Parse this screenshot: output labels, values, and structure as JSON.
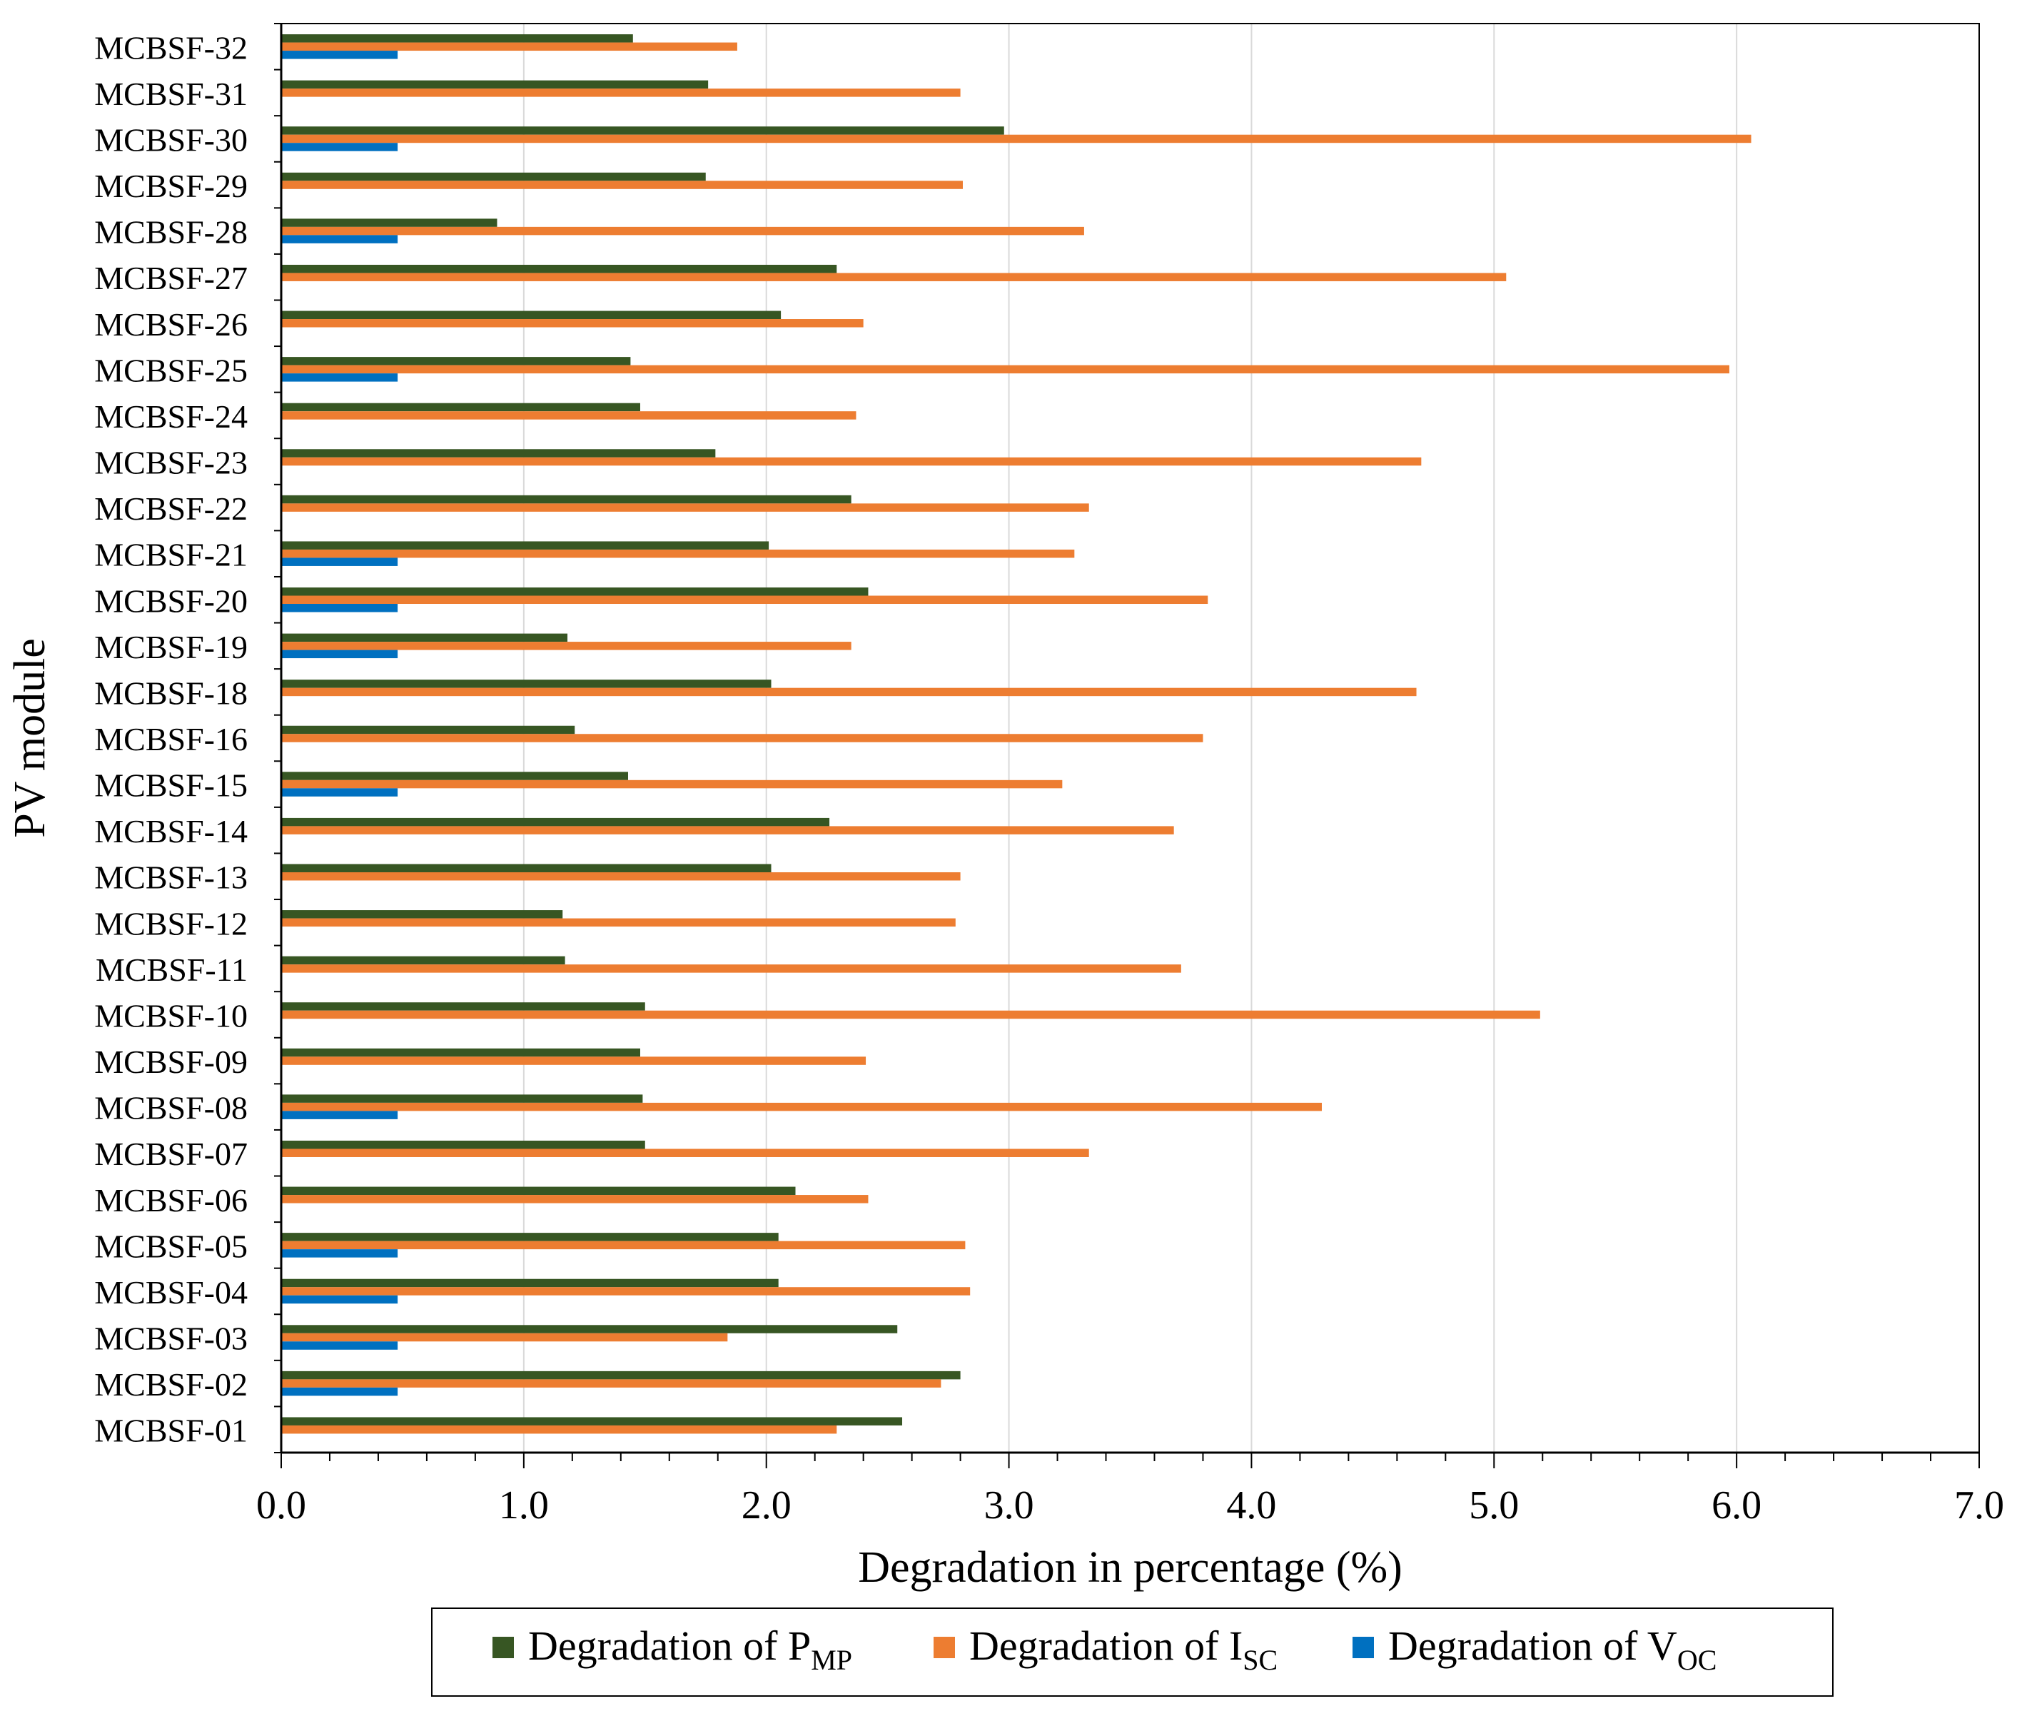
{
  "chart_data": {
    "type": "bar",
    "orientation": "horizontal",
    "title": "",
    "xlabel": "Degradation in percentage (%)",
    "ylabel": "PV module",
    "xlim": [
      0,
      7.0
    ],
    "x_ticks": [
      "0.0",
      "1.0",
      "2.0",
      "3.0",
      "4.0",
      "5.0",
      "6.0",
      "7.0"
    ],
    "x_tick_values": [
      0,
      1,
      2,
      3,
      4,
      5,
      6,
      7
    ],
    "grid": "vertical",
    "legend_position": "bottom",
    "categories": [
      "MCBSF-01",
      "MCBSF-02",
      "MCBSF-03",
      "MCBSF-04",
      "MCBSF-05",
      "MCBSF-06",
      "MCBSF-07",
      "MCBSF-08",
      "MCBSF-09",
      "MCBSF-10",
      "MCBSF-11",
      "MCBSF-12",
      "MCBSF-13",
      "MCBSF-14",
      "MCBSF-15",
      "MCBSF-16",
      "MCBSF-18",
      "MCBSF-19",
      "MCBSF-20",
      "MCBSF-21",
      "MCBSF-22",
      "MCBSF-23",
      "MCBSF-24",
      "MCBSF-25",
      "MCBSF-26",
      "MCBSF-27",
      "MCBSF-28",
      "MCBSF-29",
      "MCBSF-30",
      "MCBSF-31",
      "MCBSF-32"
    ],
    "series": [
      {
        "name": "Degradation of PMP",
        "legend_main": "Degradation of P",
        "legend_sub": "MP",
        "color": "#375623",
        "values": [
          2.56,
          2.8,
          2.54,
          2.05,
          2.05,
          2.12,
          1.5,
          1.49,
          1.48,
          1.5,
          1.17,
          1.16,
          2.02,
          2.26,
          1.43,
          1.21,
          2.02,
          1.18,
          2.42,
          2.01,
          2.35,
          1.79,
          1.48,
          1.44,
          2.06,
          2.29,
          0.89,
          1.75,
          2.98,
          1.76,
          1.45
        ]
      },
      {
        "name": "Degradation of ISC",
        "legend_main": "Degradation of I",
        "legend_sub": "SC",
        "color": "#ED7D31",
        "values": [
          2.29,
          2.72,
          1.84,
          2.84,
          2.82,
          2.42,
          3.33,
          4.29,
          2.41,
          5.19,
          3.71,
          2.78,
          2.8,
          3.68,
          3.22,
          3.8,
          4.68,
          2.35,
          3.82,
          3.27,
          3.33,
          4.7,
          2.37,
          5.97,
          2.4,
          5.05,
          3.31,
          2.81,
          6.06,
          2.8,
          1.88
        ]
      },
      {
        "name": "Degradation of VOC",
        "legend_main": "Degradation of V",
        "legend_sub": "OC",
        "color": "#0070C0",
        "values": [
          0,
          0.48,
          0.48,
          0.48,
          0.48,
          0,
          0,
          0.48,
          0,
          0,
          0,
          0,
          0,
          0,
          0.48,
          0,
          0,
          0.48,
          0.48,
          0.48,
          0,
          0,
          0,
          0.48,
          0,
          0,
          0.48,
          0,
          0.48,
          0,
          0.48
        ]
      }
    ]
  }
}
